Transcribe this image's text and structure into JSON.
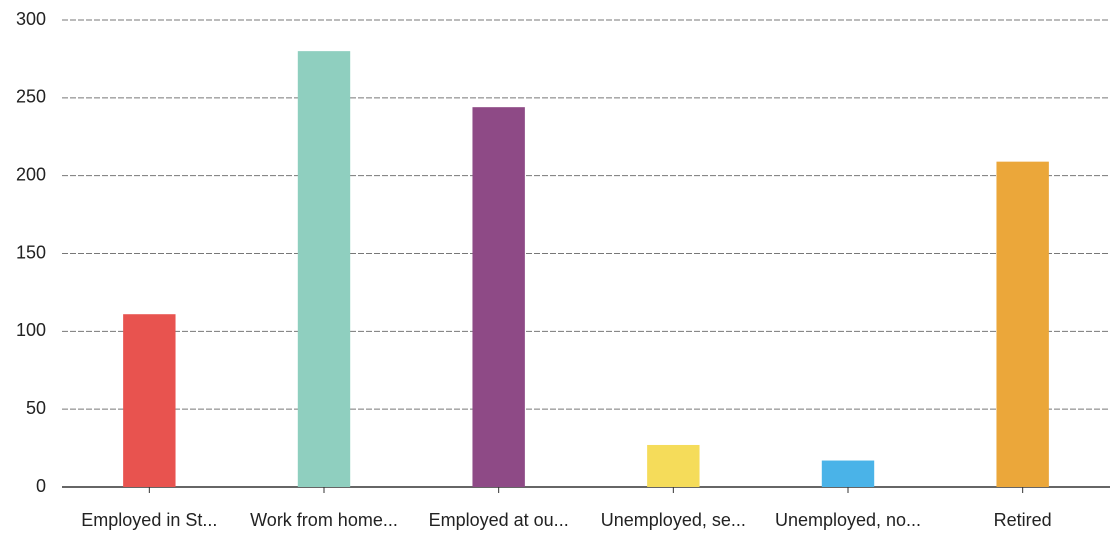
{
  "chart_data": {
    "type": "bar",
    "categories": [
      "Employed in St...",
      "Work from home...",
      "Employed at ou...",
      "Unemployed, se...",
      "Unemployed, no...",
      "Retired"
    ],
    "values": [
      111,
      280,
      244,
      27,
      17,
      209
    ],
    "colors": [
      "#e8534f",
      "#8fcfbf",
      "#8e4a86",
      "#f5dc5a",
      "#4ab3e8",
      "#eba73a"
    ],
    "ylim": [
      0,
      300
    ],
    "yticks": [
      0,
      50,
      100,
      150,
      200,
      250,
      300
    ],
    "grid": true
  }
}
